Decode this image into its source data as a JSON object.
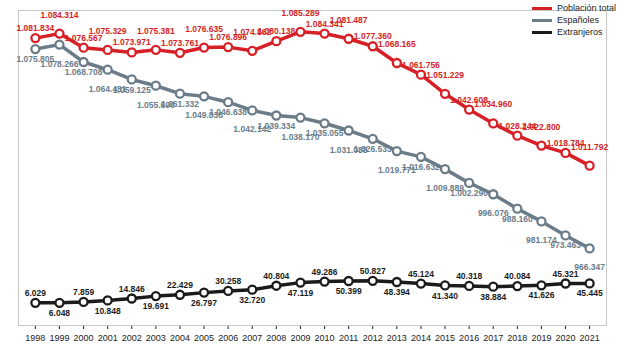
{
  "chart_data": {
    "type": "line",
    "x": [
      1998,
      1999,
      2000,
      2001,
      2002,
      2003,
      2004,
      2005,
      2006,
      2007,
      2008,
      2009,
      2010,
      2011,
      2012,
      2013,
      2014,
      2015,
      2016,
      2017,
      2018,
      2019,
      2020,
      2021
    ],
    "xlim": [
      1997.3,
      2021.7
    ],
    "xticks": [
      1998,
      1999,
      2000,
      2001,
      2002,
      2003,
      2004,
      2005,
      2006,
      2007,
      2008,
      2009,
      2010,
      2011,
      2012,
      2013,
      2014,
      2015,
      2016,
      2017,
      2018,
      2019,
      2020,
      2021
    ],
    "ylim": [
      924000,
      1097000
    ],
    "y2lim": [
      -40000,
      600000
    ],
    "tick_labels": "x",
    "grid": false,
    "legend": "top-right",
    "data_labels": true,
    "marker": "circle",
    "series": [
      {
        "name": "Población total",
        "color": "#d71f26",
        "values": [
          1081834,
          1084314,
          1076567,
          1075329,
          1073971,
          1075381,
          1073761,
          1076635,
          1076896,
          1074862,
          1080138,
          1085289,
          1084341,
          1081487,
          1077360,
          1068165,
          1061756,
          1051229,
          1042608,
          1034960,
          1028244,
          1022800,
          1018784,
          1011792
        ],
        "value_labels": [
          "1.081.834",
          "1.084.314",
          "1.076.567",
          "1.075.329",
          "1.073.971",
          "1.075.381",
          "1.073.761",
          "1.076.635",
          "1.076.896",
          "1.074.862",
          "1.080.138",
          "1.085.289",
          "1.084.341",
          "1.081.487",
          "1.077.360",
          "1.068.165",
          "1.061.756",
          "1.051.229",
          "1.042.608",
          "1.034.960",
          "1.028.244",
          "1.022.800",
          "1.018.784",
          "1.011.792"
        ]
      },
      {
        "name": "Españoles",
        "color": "#6b7c89",
        "values": [
          1075805,
          1078266,
          1068708,
          1064481,
          1059125,
          1055690,
          1051332,
          1049838,
          1046638,
          1042142,
          1039334,
          1038170,
          1035055,
          1031088,
          1026533,
          1019771,
          1016632,
          1009889,
          1002290,
          996076,
          988160,
          981174,
          973463,
          966347
        ],
        "value_labels": [
          "1.075.805",
          "1.078.266",
          "1.068.708",
          "1.064.481",
          "1.059.125",
          "1.055.690",
          "1.051.332",
          "1.049.838",
          "1.046.638",
          "1.042.142",
          "1.039.334",
          "1.038.170",
          "1.035.055",
          "1.031.088",
          "1.026.533",
          "1.019.771",
          "1.016.632",
          "1.009.889",
          "1.002.290",
          "996.076",
          "988.160",
          "981.174",
          "973.463",
          "966.347"
        ]
      },
      {
        "name": "Extranjeros",
        "color": "#1b1b1b",
        "axis": "y2",
        "values": [
          6029,
          6048,
          7859,
          10848,
          14846,
          19691,
          22429,
          26797,
          30258,
          32720,
          40804,
          47119,
          49286,
          50399,
          50827,
          48394,
          45124,
          41340,
          40318,
          38884,
          40084,
          41626,
          45321,
          45445
        ],
        "value_labels": [
          "6.029",
          "6.048",
          "7.859",
          "10.848",
          "14.846",
          "19.691",
          "22.429",
          "26.797",
          "30.258",
          "32.720",
          "40.804",
          "47.119",
          "49.286",
          "50.399",
          "50.827",
          "48.394",
          "45.124",
          "41.340",
          "40.318",
          "38.884",
          "40.084",
          "41.626",
          "45.321",
          "45.445"
        ]
      }
    ]
  }
}
